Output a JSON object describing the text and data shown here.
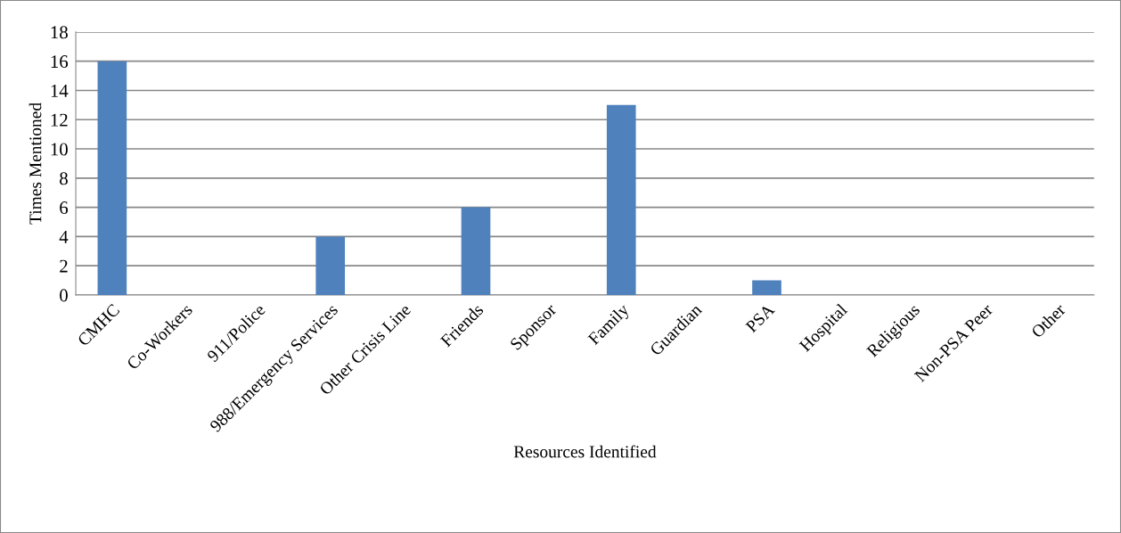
{
  "chart_data": {
    "type": "bar",
    "xlabel": "Resources Identified",
    "ylabel": "Times Mentioned",
    "categories": [
      "CMHC",
      "Co-Workers",
      "911/Police",
      "988/Emergency Services",
      "Other Crisis Line",
      "Friends",
      "Sponsor",
      "Family",
      "Guardian",
      "PSA",
      "Hospital",
      "Religious",
      "Non-PSA Peer",
      "Other"
    ],
    "values": [
      16,
      0,
      0,
      4,
      0,
      6,
      0,
      13,
      0,
      1,
      0,
      0,
      0,
      0
    ],
    "color": "#4f81bd",
    "ylim": [
      0,
      18
    ],
    "yticks": [
      0,
      2,
      4,
      6,
      8,
      10,
      12,
      14,
      16,
      18
    ],
    "grid": "y",
    "legend": false
  }
}
